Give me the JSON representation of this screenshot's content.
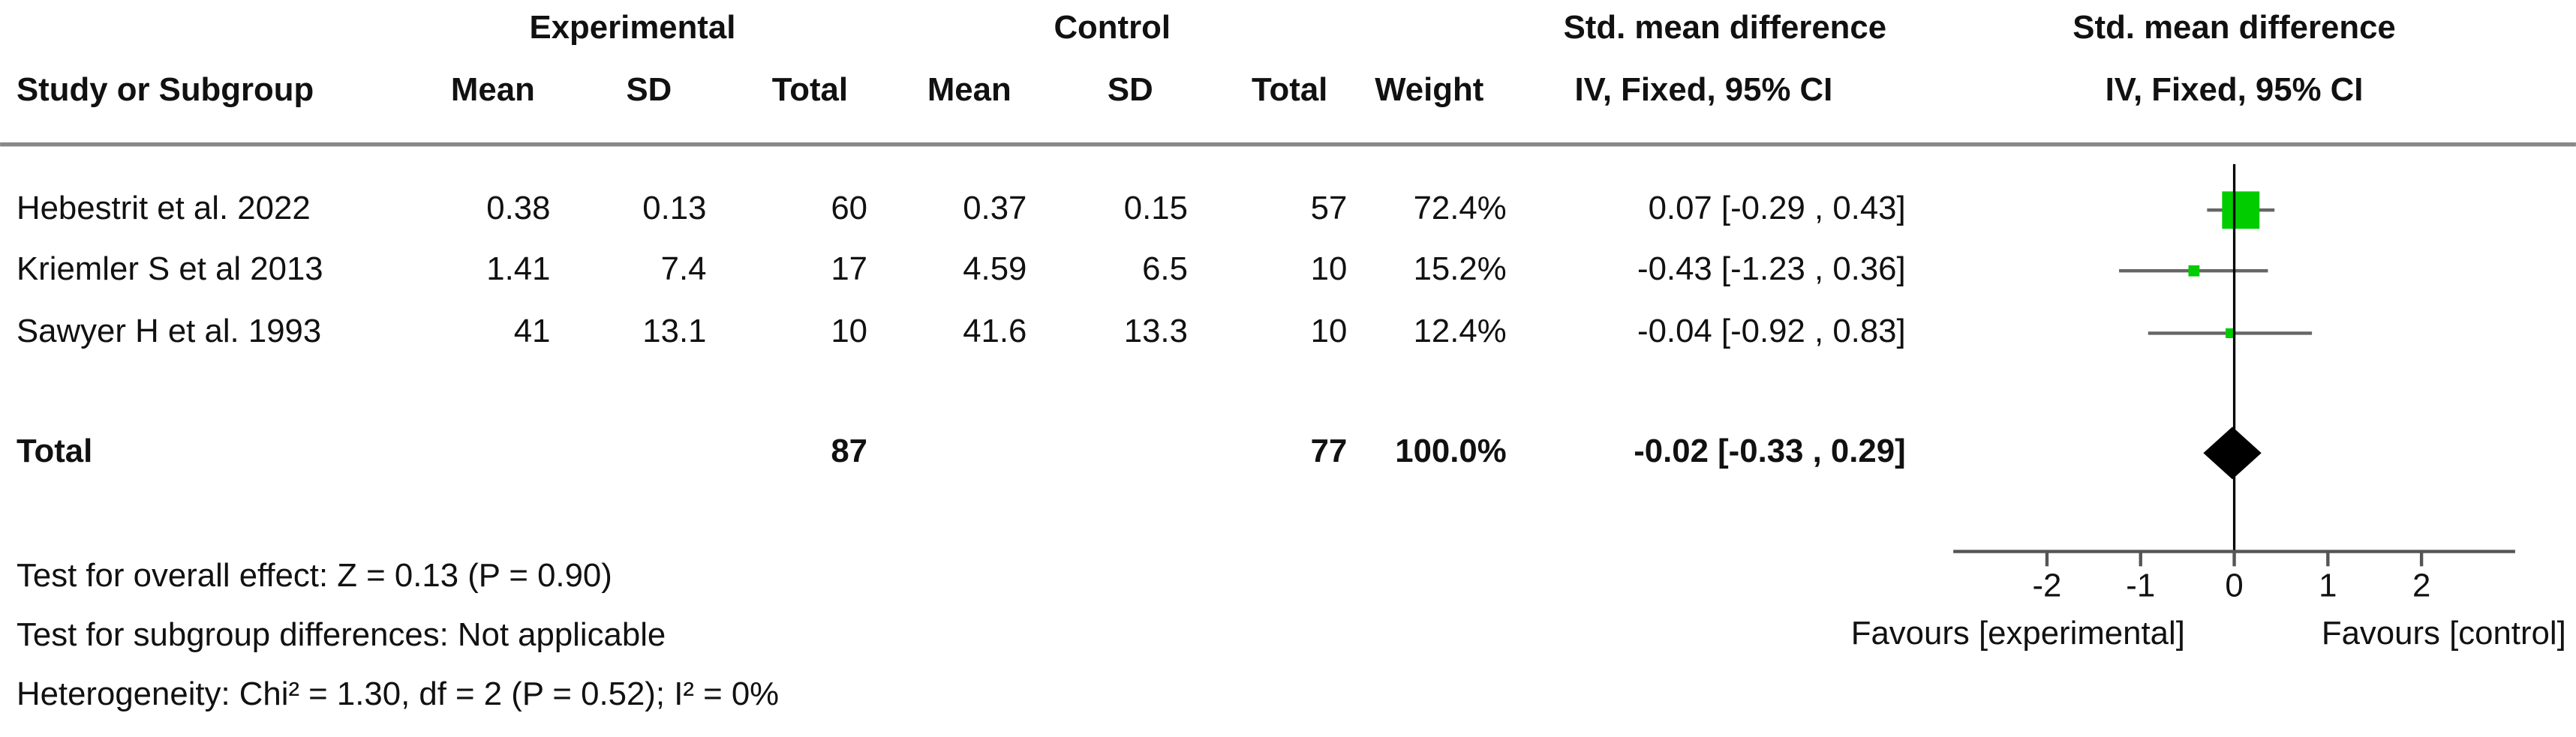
{
  "chart_data": {
    "type": "forest",
    "headers": {
      "experimental": "Experimental",
      "control": "Control",
      "effect": "Std. mean difference",
      "effect_method": "IV, Fixed, 95% CI",
      "plot": "Std. mean difference",
      "plot_method": "IV, Fixed, 95% CI",
      "columns": [
        "Study or Subgroup",
        "Mean",
        "SD",
        "Total",
        "Mean",
        "SD",
        "Total",
        "Weight"
      ]
    },
    "studies": [
      {
        "name": "Hebestrit et al. 2022",
        "exp_mean": 0.38,
        "exp_sd": 0.13,
        "exp_total": 60,
        "ctrl_mean": 0.37,
        "ctrl_sd": 0.15,
        "ctrl_total": 57,
        "weight": 72.4,
        "weight_label": "72.4%",
        "smd": 0.07,
        "ci": [
          -0.29,
          0.43
        ],
        "ci_label": "0.07 [-0.29 , 0.43]"
      },
      {
        "name": "Kriemler S et al 2013",
        "exp_mean": 1.41,
        "exp_sd": 7.4,
        "exp_total": 17,
        "ctrl_mean": 4.59,
        "ctrl_sd": 6.5,
        "ctrl_total": 10,
        "weight": 15.2,
        "weight_label": "15.2%",
        "smd": -0.43,
        "ci": [
          -1.23,
          0.36
        ],
        "ci_label": "-0.43 [-1.23 , 0.36]"
      },
      {
        "name": "Sawyer H et al. 1993",
        "exp_mean": 41,
        "exp_sd": 13.1,
        "exp_total": 10,
        "ctrl_mean": 41.6,
        "ctrl_sd": 13.3,
        "ctrl_total": 10,
        "weight": 12.4,
        "weight_label": "12.4%",
        "smd": -0.04,
        "ci": [
          -0.92,
          0.83
        ],
        "ci_label": "-0.04 [-0.92 , 0.83]"
      }
    ],
    "total": {
      "name": "Total",
      "exp_total": 87,
      "ctrl_total": 77,
      "weight": 100,
      "weight_label": "100.0%",
      "smd": -0.02,
      "ci": [
        -0.33,
        0.29
      ],
      "ci_label": "-0.02 [-0.33 , 0.29]"
    },
    "footnotes": [
      "Test for overall effect: Z = 0.13 (P = 0.90)",
      "Test for subgroup differences: Not applicable",
      "Heterogeneity: Chi² = 1.30, df = 2 (P = 0.52); I² = 0%"
    ],
    "xlim": [
      -3,
      3
    ],
    "xticks": [
      -2,
      -1,
      0,
      1,
      2
    ],
    "xlabel_left": "Favours [experimental]",
    "xlabel_right": "Favours [control]",
    "marker_color": "#00cc00",
    "ci_color": "#666666",
    "diamond_color": "#000000"
  }
}
